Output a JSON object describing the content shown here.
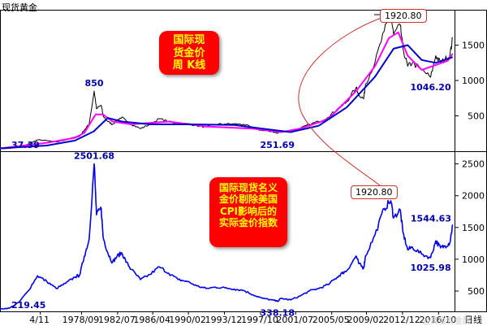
{
  "title_top": "现货黄金.",
  "box_top_lines": [
    "国际现",
    "货金价",
    "周 K线"
  ],
  "box_bottom_lines": [
    "国际现货名义",
    "金价剔除美国",
    "CPI影响后的",
    "实际金价指数"
  ],
  "watermark": "@黄金贵金属",
  "callout_top": "1920.80",
  "callout_bottom": "1920.80",
  "colors": {
    "series": "#0000ee",
    "ma_short": "#ff00ff",
    "ma_long": "#0000cc",
    "label_text": "#0000aa",
    "box_bg": "#ff0000",
    "box_text": "#ffff00",
    "callout_border": "#cc3333"
  },
  "chart_data": [
    {
      "type": "line",
      "title": "国际现货金价周K线",
      "y_ticks": [
        500,
        1000,
        1500
      ],
      "ylim": [
        0,
        2000
      ],
      "xlim": [
        1970,
        2018.5
      ],
      "annotations": [
        {
          "text": "850",
          "x": 1980.05,
          "y": 850
        },
        {
          "text": "37.39",
          "x": 1970,
          "y": 37.39
        },
        {
          "text": "251.69",
          "x": 1999.6,
          "y": 251.69
        },
        {
          "text": "1920.80",
          "x": 2011.7,
          "y": 1920.8
        },
        {
          "text": "1046.20",
          "x": 2015.95,
          "y": 1046.2
        }
      ],
      "series": [
        {
          "key": "price",
          "x": [
            1970,
            1971,
            1972,
            1973,
            1974,
            1975,
            1976,
            1977,
            1978,
            1978.5,
            1979,
            1979.5,
            1980.05,
            1980.3,
            1980.8,
            1981,
            1981.5,
            1982,
            1982.5,
            1983,
            1983.5,
            1984,
            1985,
            1986,
            1987,
            1988,
            1989,
            1990,
            1991,
            1992,
            1993,
            1994,
            1995,
            1996,
            1997,
            1998,
            1999,
            1999.6,
            2000,
            2001,
            2002,
            2003,
            2004,
            2005,
            2006,
            2006.5,
            2007,
            2008,
            2008.3,
            2008.8,
            2009,
            2010,
            2011,
            2011.7,
            2012,
            2012.7,
            2013,
            2013.5,
            2014,
            2015,
            2015.95,
            2016.5,
            2017,
            2017.5,
            2018,
            2018.3
          ],
          "y": [
            37.39,
            40,
            60,
            100,
            160,
            150,
            130,
            160,
            200,
            210,
            300,
            380,
            850,
            600,
            650,
            500,
            420,
            380,
            440,
            480,
            420,
            380,
            320,
            380,
            460,
            420,
            380,
            390,
            360,
            340,
            380,
            385,
            385,
            380,
            330,
            290,
            280,
            251.69,
            285,
            270,
            320,
            380,
            420,
            480,
            600,
            640,
            700,
            900,
            800,
            740,
            950,
            1250,
            1700,
            1920.8,
            1650,
            1780,
            1450,
            1200,
            1250,
            1150,
            1046.2,
            1350,
            1250,
            1300,
            1350,
            1600
          ]
        },
        {
          "key": "ma_short",
          "x": [
            1970,
            1975,
            1978,
            1979,
            1980.2,
            1981,
            1982,
            1984,
            1988,
            1992,
            1997,
            2000,
            2002,
            2005,
            2008,
            2010,
            2011.5,
            2012.5,
            2013.5,
            2015,
            2016.5,
            2017.8,
            2018.3
          ],
          "y": [
            40,
            120,
            190,
            260,
            520,
            520,
            420,
            380,
            420,
            350,
            320,
            270,
            320,
            450,
            850,
            1200,
            1600,
            1680,
            1350,
            1150,
            1220,
            1280,
            1380
          ]
        },
        {
          "key": "ma_long",
          "x": [
            1970,
            1975,
            1978,
            1980,
            1981.5,
            1983,
            1986,
            1990,
            1995,
            1998,
            2001,
            2004,
            2007,
            2010,
            2012,
            2013.5,
            2015,
            2016.5,
            2018.3
          ],
          "y": [
            40,
            80,
            150,
            280,
            470,
            420,
            380,
            380,
            370,
            320,
            270,
            360,
            620,
            1050,
            1450,
            1500,
            1290,
            1250,
            1330
          ]
        }
      ]
    },
    {
      "type": "line",
      "title": "国际现货名义金价剔除美国CPI影响后的实际金价指数",
      "y_ticks": [
        500,
        1000,
        1500,
        2000,
        2500
      ],
      "ylim": [
        180,
        2700
      ],
      "xlim": [
        1970,
        2018.5
      ],
      "x_ticks": [
        "4/11",
        "1978/09",
        "1982/07",
        "1986/04",
        "1990/02",
        "1993/12",
        "1997/10",
        "2001/07",
        "2005/05",
        "2009/02",
        "2012/12",
        "2016/10"
      ],
      "x_tick_values": [
        1974.3,
        1978.7,
        1982.55,
        1986.3,
        1990.1,
        1993.95,
        1997.8,
        2001.55,
        2005.4,
        2009.1,
        2012.95,
        2016.8
      ],
      "x_tick_suffix": "日线",
      "annotations": [
        {
          "text": "2501.68",
          "x": 1980.05,
          "y": 2501.68
        },
        {
          "text": "219.45",
          "x": 1970,
          "y": 219.45
        },
        {
          "text": "338.18",
          "x": 1999.6,
          "y": 338.18
        },
        {
          "text": "1920.80",
          "x": 2011.7,
          "y": 1920.8
        },
        {
          "text": "1025.98",
          "x": 2015.95,
          "y": 1025.98
        },
        {
          "text": "1544.63",
          "x": 2018.3,
          "y": 1544.63
        }
      ],
      "series": [
        {
          "key": "real",
          "x": [
            1970,
            1971,
            1972,
            1973,
            1974,
            1975,
            1976,
            1977,
            1978,
            1978.5,
            1979,
            1979.5,
            1980.05,
            1980.3,
            1980.8,
            1981,
            1981.5,
            1982,
            1982.5,
            1983,
            1983.5,
            1984,
            1985,
            1986,
            1987,
            1988,
            1989,
            1990,
            1991,
            1992,
            1993,
            1994,
            1995,
            1996,
            1997,
            1998,
            1999,
            1999.6,
            2000,
            2001,
            2002,
            2003,
            2004,
            2005,
            2006,
            2006.5,
            2007,
            2008,
            2008.3,
            2008.8,
            2009,
            2010,
            2011,
            2011.7,
            2012,
            2012.7,
            2013,
            2013.5,
            2014,
            2015,
            2015.95,
            2016.5,
            2017,
            2017.5,
            2018,
            2018.3
          ],
          "y": [
            219.45,
            230,
            320,
            500,
            740,
            650,
            540,
            620,
            720,
            750,
            1050,
            1300,
            2501.68,
            1700,
            1800,
            1350,
            1100,
            950,
            1050,
            1100,
            950,
            840,
            680,
            760,
            880,
            780,
            680,
            650,
            580,
            540,
            560,
            550,
            530,
            510,
            440,
            385,
            360,
            338.18,
            385,
            360,
            420,
            500,
            540,
            600,
            720,
            780,
            820,
            1050,
            930,
            860,
            1050,
            1380,
            1800,
            1920.8,
            1650,
            1780,
            1420,
            1150,
            1190,
            1080,
            1025.98,
            1290,
            1180,
            1210,
            1260,
            1544.63
          ]
        }
      ]
    }
  ]
}
